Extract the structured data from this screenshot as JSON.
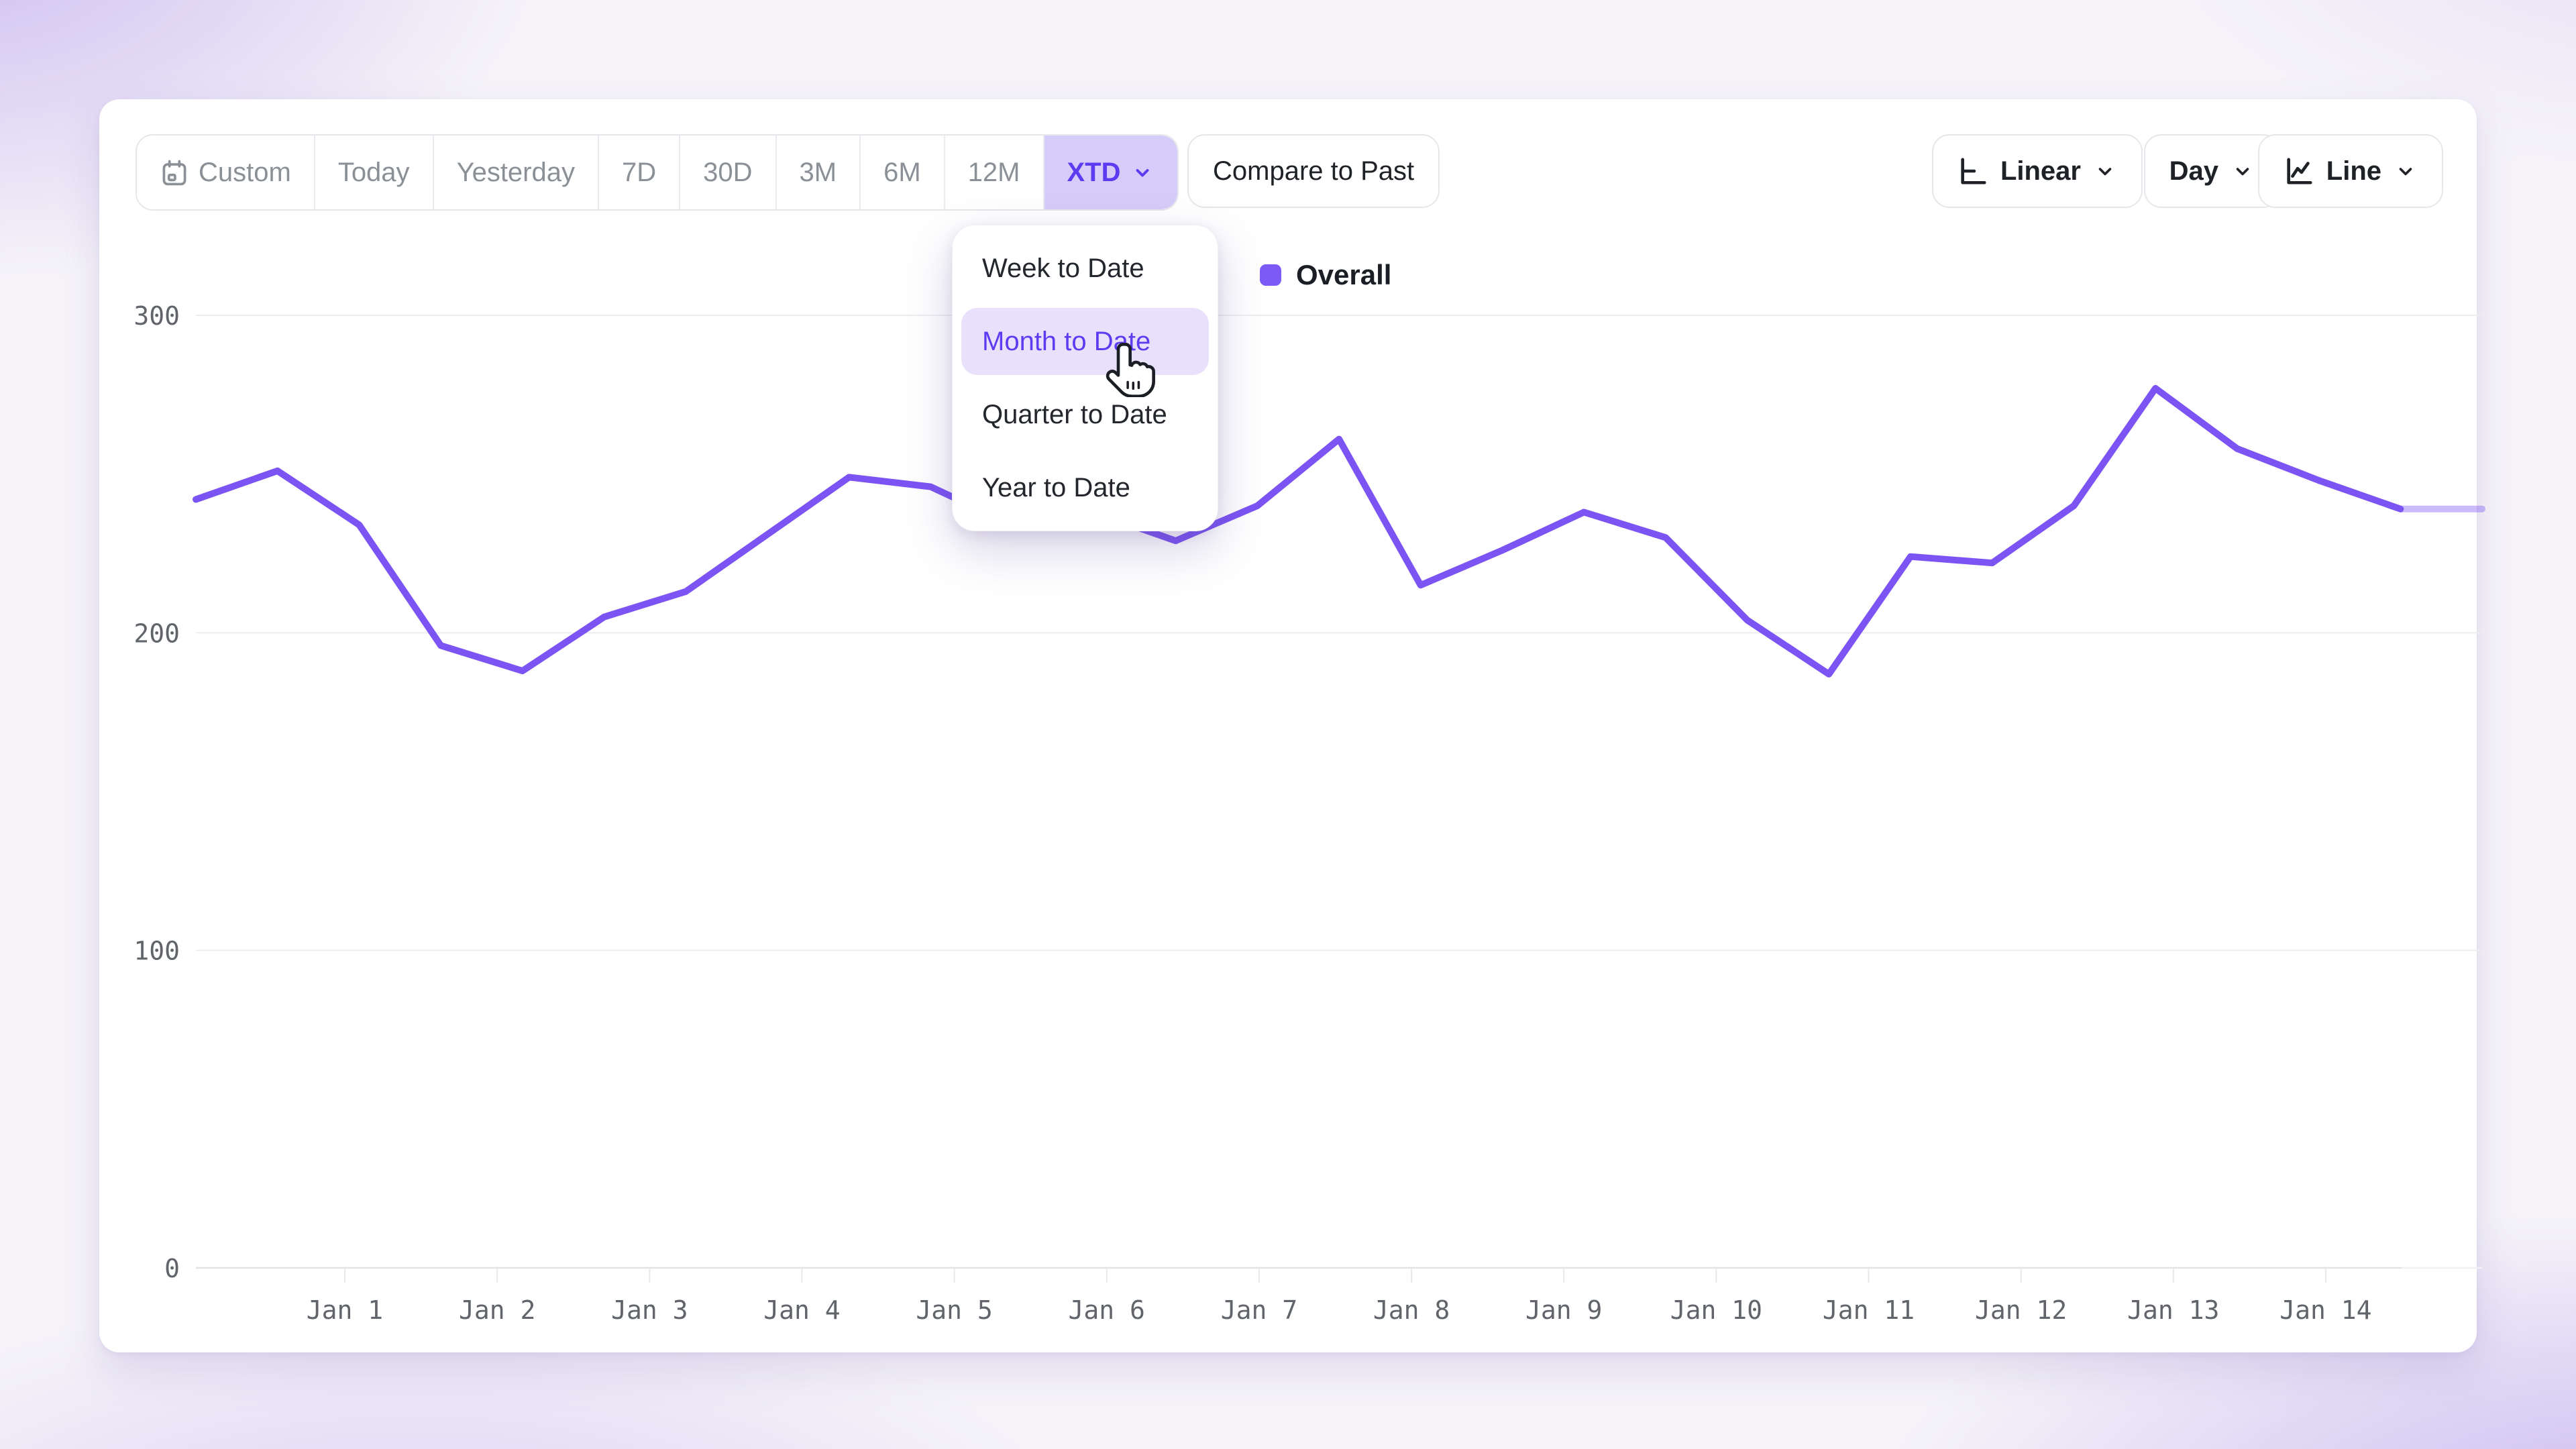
{
  "toolbar": {
    "date_ranges": {
      "items": [
        {
          "label": "Custom",
          "icon": "calendar-icon",
          "selected": false
        },
        {
          "label": "Today",
          "selected": false
        },
        {
          "label": "Yesterday",
          "selected": false
        },
        {
          "label": "7D",
          "selected": false
        },
        {
          "label": "30D",
          "selected": false
        },
        {
          "label": "3M",
          "selected": false
        },
        {
          "label": "6M",
          "selected": false
        },
        {
          "label": "12M",
          "selected": false
        },
        {
          "label": "XTD",
          "icon": "chevron-down-icon",
          "selected": true
        }
      ],
      "selected": "XTD"
    },
    "compare_button_label": "Compare to Past",
    "scale_select": {
      "label": "Linear",
      "icon": "axis-icon"
    },
    "granularity_select": {
      "label": "Day"
    },
    "chart_type_select": {
      "label": "Line",
      "icon": "line-chart-icon"
    }
  },
  "dropdown_menu": {
    "items": [
      "Week to Date",
      "Month to Date",
      "Quarter to Date",
      "Year to Date"
    ],
    "highlighted": "Month to Date"
  },
  "legend": {
    "label": "Overall",
    "color": "#7D5BF6"
  },
  "colors": {
    "line": "#7C54F3",
    "selected_range_bg": "#d6ccf9",
    "selected_range_text": "#5b3cf0",
    "gridline": "#ededf0",
    "axis": "#e3e3e7",
    "tick_label": "#61656b"
  },
  "chart_data": {
    "type": "line",
    "title": "",
    "xlabel": "",
    "ylabel": "",
    "x_tick_labels": [
      "Jan 1",
      "Jan 2",
      "Jan 3",
      "Jan 4",
      "Jan 5",
      "Jan 6",
      "Jan 7",
      "Jan 8",
      "Jan 9",
      "Jan 10",
      "Jan 11",
      "Jan 12",
      "Jan 13",
      "Jan 14"
    ],
    "y_ticks": [
      0,
      100,
      200,
      300
    ],
    "ylim": [
      0,
      300
    ],
    "points_per_day": 2,
    "grid": "horizontal",
    "legend_position": "top-center",
    "series": [
      {
        "name": "Overall",
        "color": "#7C54F3",
        "values": [
          242,
          251,
          234,
          196,
          188,
          205,
          213,
          231,
          249,
          246,
          234,
          238,
          229,
          240,
          261,
          215,
          226,
          238,
          230,
          204,
          187,
          224,
          222,
          240,
          277,
          258,
          248,
          239,
          239
        ],
        "last_segment_style": "faded-incomplete"
      }
    ]
  }
}
